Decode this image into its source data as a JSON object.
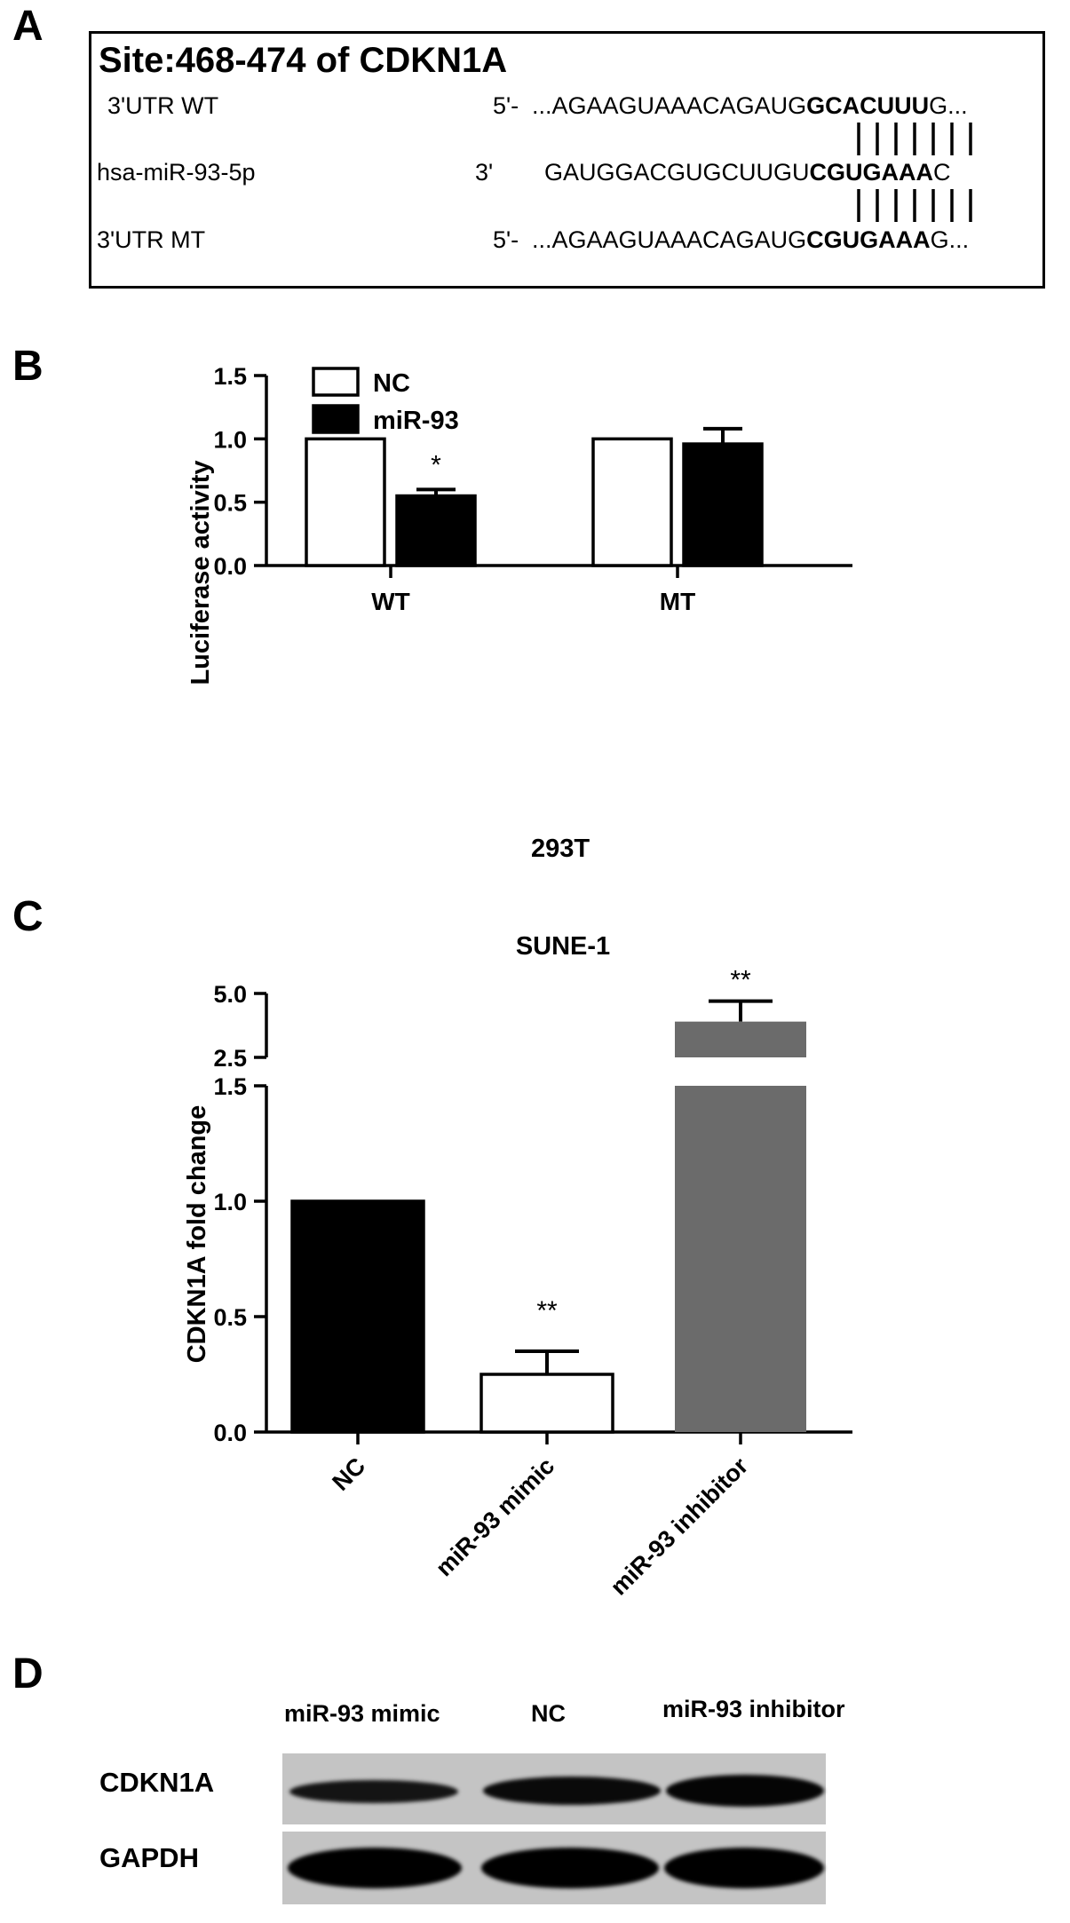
{
  "panels": {
    "a": "A",
    "b": "B",
    "c": "C",
    "d": "D"
  },
  "sequence": {
    "title": "Site:468-474 of CDKN1A",
    "rows": [
      {
        "label": "3'UTR WT",
        "prefix": "5'-",
        "seq_normal": "...AGAAGUAAACAGAUG",
        "seq_bold": "GCACUUU",
        "seq_tail": "G..."
      },
      {
        "label": "hsa-miR-93-5p",
        "prefix": "3'",
        "seq_normal": "GAUGGACGUGCUUGU",
        "seq_bold": "CGUGAAA",
        "seq_tail": "C"
      },
      {
        "label": "3'UTR MT",
        "prefix": "5'-",
        "seq_normal": "...AGAAGUAAACAGAUG",
        "seq_bold": "CGUGAAA",
        "seq_tail": "G..."
      }
    ]
  },
  "chart_data": [
    {
      "type": "bar",
      "title": "",
      "xlabel": "293T",
      "ylabel": "Luciferase activity",
      "ylim": [
        0,
        1.5
      ],
      "yticks": [
        "0.0",
        "0.5",
        "1.0",
        "1.5"
      ],
      "categories": [
        "WT",
        "MT"
      ],
      "series": [
        {
          "name": "NC",
          "values": [
            1.0,
            1.0
          ],
          "errors": [
            0,
            0
          ],
          "color": "#ffffff"
        },
        {
          "name": "miR-93",
          "values": [
            0.55,
            0.96
          ],
          "errors": [
            0.05,
            0.12
          ],
          "color": "#000000"
        }
      ],
      "annotations": [
        "*",
        ""
      ],
      "legend": "top-left",
      "grid": false
    },
    {
      "type": "bar",
      "title": "SUNE-1",
      "xlabel": "",
      "ylabel": "CDKN1A fold change",
      "axis_break": {
        "lower": [
          0,
          1.5
        ],
        "upper": [
          2.5,
          5.0
        ]
      },
      "yticks": [
        "0.0",
        "0.5",
        "1.0",
        "1.5",
        "2.5",
        "5.0"
      ],
      "categories": [
        "NC",
        "miR-93 mimic",
        "miR-93 inhibitor"
      ],
      "values": [
        1.0,
        0.25,
        3.9
      ],
      "errors": [
        0,
        0.1,
        0.8
      ],
      "colors": [
        "#000000",
        "#ffffff",
        "#6b6b6b"
      ],
      "annotations": [
        "",
        "**",
        "**"
      ],
      "grid": false
    }
  ],
  "blot": {
    "lanes": [
      "miR-93 mimic",
      "NC",
      "miR-93 inhibitor"
    ],
    "rows": [
      "CDKN1A",
      "GAPDH"
    ]
  }
}
